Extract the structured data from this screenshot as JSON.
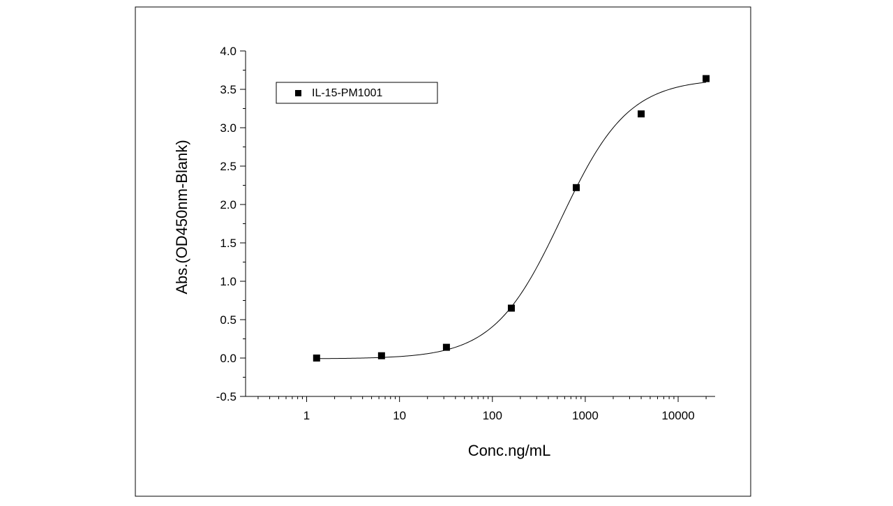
{
  "chart_data": {
    "type": "scatter",
    "title": "",
    "xlabel": "Conc.ng/mL",
    "ylabel": "Abs.(OD450nm-Blank)",
    "x_scale": "log",
    "xlim": [
      0.22,
      25000
    ],
    "ylim": [
      -0.5,
      4.0
    ],
    "x_ticks": [
      1,
      10,
      100,
      1000,
      10000
    ],
    "x_tick_labels": [
      "1",
      "10",
      "100",
      "1000",
      "10000"
    ],
    "y_ticks": [
      -0.5,
      0.0,
      0.5,
      1.0,
      1.5,
      2.0,
      2.5,
      3.0,
      3.5,
      4.0
    ],
    "y_tick_labels": [
      "-0.5",
      "0.0",
      "0.5",
      "1.0",
      "1.5",
      "2.0",
      "2.5",
      "3.0",
      "3.5",
      "4.0"
    ],
    "grid": false,
    "legend_position": "top-left",
    "series": [
      {
        "name": "IL-15-PM1001",
        "marker": "square",
        "color": "#000000",
        "x": [
          1.28,
          6.4,
          32,
          160,
          800,
          4000,
          20000
        ],
        "y": [
          0.0,
          0.03,
          0.14,
          0.65,
          2.22,
          3.18,
          3.64
        ]
      }
    ],
    "fit_curve": {
      "model": "4PL",
      "color": "#000000",
      "x_range": [
        1.28,
        20000
      ],
      "bottom": -0.01,
      "top": 3.64,
      "ec50": 550,
      "hill": 1.2
    }
  }
}
